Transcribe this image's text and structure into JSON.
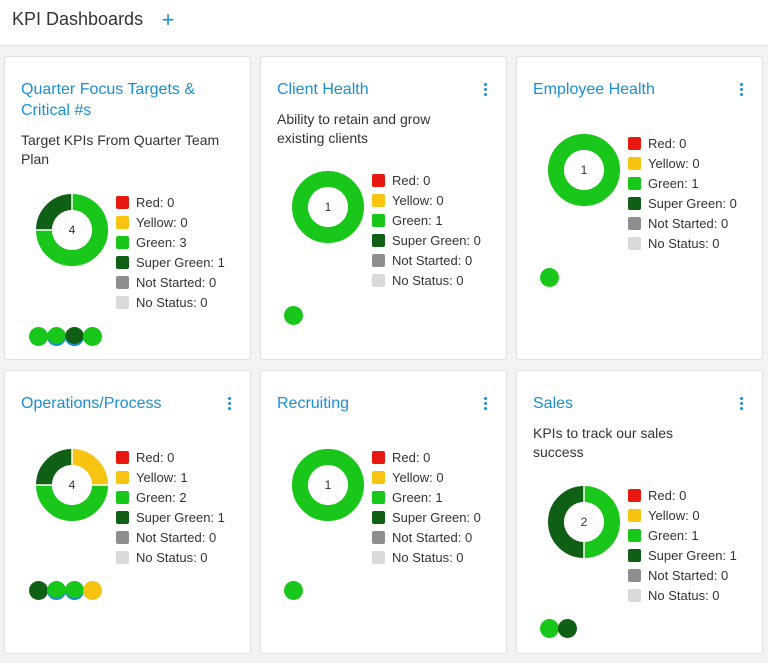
{
  "header": {
    "title": "KPI Dashboards",
    "add_label": "+"
  },
  "status_colors": {
    "red": "#e8170f",
    "yellow": "#f7c511",
    "green": "#19c71a",
    "super_green": "#0f5f14",
    "not_started": "#8e8e8e",
    "no_status": "#d9d9d9"
  },
  "cards": [
    {
      "title": "Quarter Focus Targets & Critical #s",
      "description": "Target KPIs From Quarter Team Plan",
      "total": "4",
      "legend": [
        "Red: 0",
        "Yellow: 0",
        "Green: 3",
        "Super Green: 1",
        "Not Started: 0",
        "No Status: 0"
      ],
      "counts": {
        "red": 0,
        "yellow": 0,
        "green": 3,
        "super_green": 1,
        "not_started": 0,
        "no_status": 0
      },
      "dots": [
        "green",
        "green",
        "super_green",
        "green"
      ]
    },
    {
      "title": "Client Health",
      "description": "Ability to retain and grow existing clients",
      "total": "1",
      "legend": [
        "Red: 0",
        "Yellow: 0",
        "Green: 1",
        "Super Green: 0",
        "Not Started: 0",
        "No Status: 0"
      ],
      "counts": {
        "red": 0,
        "yellow": 0,
        "green": 1,
        "super_green": 0,
        "not_started": 0,
        "no_status": 0
      },
      "dots": [
        "green"
      ]
    },
    {
      "title": "Employee Health",
      "description": "",
      "total": "1",
      "legend": [
        "Red: 0",
        "Yellow: 0",
        "Green: 1",
        "Super Green: 0",
        "Not Started: 0",
        "No Status: 0"
      ],
      "counts": {
        "red": 0,
        "yellow": 0,
        "green": 1,
        "super_green": 0,
        "not_started": 0,
        "no_status": 0
      },
      "dots": [
        "green"
      ]
    },
    {
      "title": "Operations/Process",
      "description": "",
      "total": "4",
      "legend": [
        "Red: 0",
        "Yellow: 1",
        "Green: 2",
        "Super Green: 1",
        "Not Started: 0",
        "No Status: 0"
      ],
      "counts": {
        "red": 0,
        "yellow": 1,
        "green": 2,
        "super_green": 1,
        "not_started": 0,
        "no_status": 0
      },
      "dots": [
        "super_green",
        "green",
        "green",
        "yellow"
      ]
    },
    {
      "title": "Recruiting",
      "description": "",
      "total": "1",
      "legend": [
        "Red: 0",
        "Yellow: 0",
        "Green: 1",
        "Super Green: 0",
        "Not Started: 0",
        "No Status: 0"
      ],
      "counts": {
        "red": 0,
        "yellow": 0,
        "green": 1,
        "super_green": 0,
        "not_started": 0,
        "no_status": 0
      },
      "dots": [
        "green"
      ]
    },
    {
      "title": "Sales",
      "description": "KPIs to track our sales success",
      "total": "2",
      "legend": [
        "Red: 0",
        "Yellow: 0",
        "Green: 1",
        "Super Green: 1",
        "Not Started: 0",
        "No Status: 0"
      ],
      "counts": {
        "red": 0,
        "yellow": 0,
        "green": 1,
        "super_green": 1,
        "not_started": 0,
        "no_status": 0
      },
      "dots": [
        "green",
        "super_green"
      ]
    }
  ]
}
